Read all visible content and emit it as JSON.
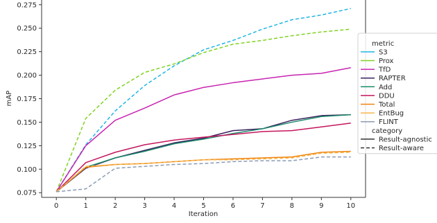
{
  "chart_data": {
    "type": "line",
    "xlabel": "Iteration",
    "ylabel": "mAP",
    "x": [
      0,
      1,
      2,
      3,
      4,
      5,
      6,
      7,
      8,
      9,
      10
    ],
    "xlim": [
      -0.5,
      10.5
    ],
    "ylim": [
      0.07,
      0.28
    ],
    "x_ticks": [
      "0",
      "1",
      "2",
      "3",
      "4",
      "5",
      "6",
      "7",
      "8",
      "9",
      "10"
    ],
    "y_ticks": [
      "0.075",
      "0.100",
      "0.125",
      "0.150",
      "0.175",
      "0.200",
      "0.225",
      "0.250",
      "0.275"
    ],
    "y_tick_values": [
      0.075,
      0.1,
      0.125,
      0.15,
      0.175,
      0.2,
      0.225,
      0.25,
      0.275
    ],
    "grid": false,
    "legend_placement": "right",
    "legend": {
      "metric_title": "metric",
      "category_title": "category",
      "categories": [
        {
          "name": "Result-agnostic",
          "style": "solid"
        },
        {
          "name": "Result-aware",
          "style": "dashed"
        }
      ]
    },
    "series": [
      {
        "name": "S3",
        "color": "#1fb4e6",
        "style": "dashed",
        "values": [
          0.076,
          0.126,
          0.162,
          0.189,
          0.21,
          0.227,
          0.237,
          0.249,
          0.259,
          0.264,
          0.271
        ]
      },
      {
        "name": "Prox",
        "color": "#7ed321",
        "style": "dashed",
        "values": [
          0.076,
          0.154,
          0.184,
          0.203,
          0.212,
          0.224,
          0.233,
          0.237,
          0.242,
          0.246,
          0.249
        ]
      },
      {
        "name": "TfD",
        "color": "#c724b1",
        "style": "solid",
        "values": [
          0.076,
          0.125,
          0.152,
          0.165,
          0.179,
          0.187,
          0.192,
          0.196,
          0.2,
          0.202,
          0.208
        ]
      },
      {
        "name": "RAPTER",
        "color": "#3a1f5e",
        "style": "solid",
        "values": [
          0.076,
          0.101,
          0.112,
          0.12,
          0.128,
          0.133,
          0.141,
          0.143,
          0.152,
          0.157,
          0.158
        ]
      },
      {
        "name": "Add",
        "color": "#1a8a6a",
        "style": "solid",
        "values": [
          0.076,
          0.102,
          0.112,
          0.119,
          0.127,
          0.132,
          0.138,
          0.143,
          0.15,
          0.156,
          0.158
        ]
      },
      {
        "name": "DDU",
        "color": "#c4155c",
        "style": "solid",
        "values": [
          0.076,
          0.107,
          0.118,
          0.126,
          0.131,
          0.134,
          0.137,
          0.14,
          0.141,
          0.145,
          0.149
        ]
      },
      {
        "name": "Total",
        "color": "#f0830f",
        "style": "solid",
        "values": [
          0.076,
          0.102,
          0.105,
          0.106,
          0.108,
          0.11,
          0.111,
          0.112,
          0.113,
          0.118,
          0.119
        ]
      },
      {
        "name": "EntBug",
        "color": "#f7b54a",
        "style": "dashed",
        "values": [
          0.076,
          0.103,
          0.105,
          0.106,
          0.108,
          0.11,
          0.11,
          0.111,
          0.112,
          0.117,
          0.118
        ]
      },
      {
        "name": "FLINT",
        "color": "#8a9bb5",
        "style": "dashed",
        "values": [
          0.076,
          0.079,
          0.101,
          0.103,
          0.105,
          0.106,
          0.108,
          0.109,
          0.109,
          0.113,
          0.113
        ]
      }
    ]
  }
}
